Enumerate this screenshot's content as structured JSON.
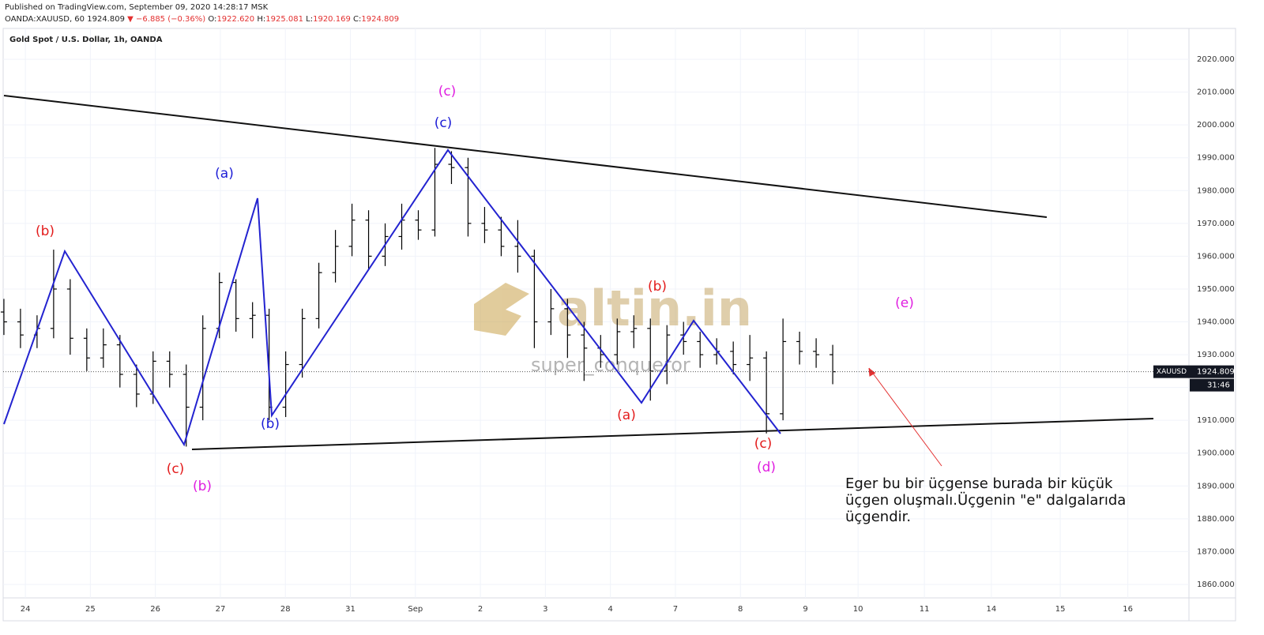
{
  "header": {
    "published": "Published on TradingView.com, September 09, 2020 14:28:17 MSK",
    "symbol": "OANDA:XAUUSD, 60",
    "price": "1924.809",
    "arrow": "▼",
    "change": "−6.885 (−0.36%)",
    "o_label": "O:",
    "o": "1922.620",
    "h_label": "H:",
    "h": "1925.081",
    "l_label": "L:",
    "l": "1920.169",
    "c_label": "C:",
    "c": "1924.809"
  },
  "chart_data": {
    "type": "ohlc",
    "title": "Gold Spot / U.S. Dollar, 1h, OANDA",
    "color": "#000000",
    "x": [
      -0.33,
      -0.075,
      0.18,
      0.435,
      0.69,
      0.945,
      1.2,
      1.455,
      1.71,
      1.965,
      2.22,
      2.475,
      2.73,
      2.985,
      3.24,
      3.495,
      3.75,
      4.005,
      4.26,
      4.515,
      4.77,
      5.025,
      5.28,
      5.535,
      5.79,
      6.045,
      6.3,
      6.555,
      6.81,
      7.065,
      7.32,
      7.575,
      7.83,
      8.085,
      8.34,
      8.595,
      8.85,
      9.105,
      9.36,
      9.615,
      9.87,
      10.125,
      10.38,
      10.635,
      10.89,
      11.145,
      11.4,
      11.655,
      11.91,
      12.165,
      12.42
    ],
    "open": [
      1943,
      1940,
      1936,
      1938,
      1950,
      1935,
      1929,
      1933,
      1924,
      1918,
      1928,
      1924,
      1914,
      1938,
      1952,
      1941,
      1942,
      1914,
      1927,
      1941,
      1955,
      1963,
      1971,
      1960,
      1966,
      1971,
      1968,
      1988,
      1987,
      1970,
      1968,
      1963,
      1960,
      1940,
      1944,
      1936,
      1932,
      1930,
      1937,
      1938,
      1925,
      1936,
      1934,
      1930,
      1931,
      1927,
      1929,
      1912,
      1934,
      1931,
      1930
    ],
    "high": [
      1947,
      1944,
      1942,
      1962,
      1953,
      1938,
      1938,
      1936,
      1927,
      1931,
      1931,
      1927,
      1942,
      1955,
      1953,
      1946,
      1944,
      1931,
      1944,
      1958,
      1968,
      1976,
      1974,
      1970,
      1976,
      1974,
      1993,
      1992,
      1990,
      1975,
      1972,
      1971,
      1962,
      1950,
      1947,
      1940,
      1936,
      1941,
      1942,
      1941,
      1939,
      1940,
      1937,
      1935,
      1934,
      1936,
      1931,
      1941,
      1937,
      1935,
      1933
    ],
    "low": [
      1936,
      1932,
      1932,
      1935,
      1930,
      1925,
      1926,
      1920,
      1914,
      1915,
      1920,
      1902,
      1910,
      1935,
      1937,
      1935,
      1910,
      1911,
      1923,
      1938,
      1952,
      1960,
      1956,
      1957,
      1962,
      1965,
      1966,
      1982,
      1966,
      1964,
      1960,
      1955,
      1932,
      1936,
      1929,
      1922,
      1926,
      1927,
      1932,
      1916,
      1921,
      1930,
      1926,
      1927,
      1924,
      1922,
      1906,
      1910,
      1927,
      1926,
      1921
    ],
    "close": [
      1940,
      1936,
      1938,
      1950,
      1935,
      1929,
      1933,
      1924,
      1918,
      1928,
      1924,
      1914,
      1938,
      1952,
      1941,
      1942,
      1914,
      1927,
      1941,
      1955,
      1963,
      1971,
      1960,
      1966,
      1971,
      1968,
      1988,
      1987,
      1970,
      1968,
      1963,
      1960,
      1940,
      1944,
      1936,
      1932,
      1930,
      1937,
      1938,
      1925,
      1936,
      1934,
      1930,
      1931,
      1927,
      1929,
      1912,
      1934,
      1931,
      1930,
      1924.809
    ],
    "xlim": [
      -0.39,
      17.9
    ],
    "xticks": [
      {
        "value": 0,
        "label": "24"
      },
      {
        "value": 1,
        "label": "25"
      },
      {
        "value": 2,
        "label": "26"
      },
      {
        "value": 3,
        "label": "27"
      },
      {
        "value": 4,
        "label": "28"
      },
      {
        "value": 5,
        "label": "31"
      },
      {
        "value": 6,
        "label": "Sep"
      },
      {
        "value": 7,
        "label": "2"
      },
      {
        "value": 8,
        "label": "3"
      },
      {
        "value": 9,
        "label": "4"
      },
      {
        "value": 10,
        "label": "7"
      },
      {
        "value": 11,
        "label": "8"
      },
      {
        "value": 12,
        "label": "9"
      },
      {
        "value": 12.81,
        "label": "10"
      },
      {
        "value": 13.83,
        "label": "11"
      },
      {
        "value": 14.86,
        "label": "14"
      },
      {
        "value": 15.92,
        "label": "15"
      },
      {
        "value": 16.96,
        "label": "16"
      }
    ],
    "ylim": [
      1855.9,
      2029.4
    ],
    "yticks": [
      {
        "value": 1860,
        "label": "1860.000"
      },
      {
        "value": 1870,
        "label": "1870.000"
      },
      {
        "value": 1880,
        "label": "1880.000"
      },
      {
        "value": 1890,
        "label": "1890.000"
      },
      {
        "value": 1900,
        "label": "1900.000"
      },
      {
        "value": 1910,
        "label": "1910.000"
      },
      {
        "value": 1920,
        "label": "1920.000"
      },
      {
        "value": 1930,
        "label": "1930.000"
      },
      {
        "value": 1940,
        "label": "1940.000"
      },
      {
        "value": 1950,
        "label": "1950.000"
      },
      {
        "value": 1960,
        "label": "1960.000"
      },
      {
        "value": 1970,
        "label": "1970.000"
      },
      {
        "value": 1980,
        "label": "1980.000"
      },
      {
        "value": 1990,
        "label": "1990.000"
      },
      {
        "value": 2000,
        "label": "2000.000"
      },
      {
        "value": 2010,
        "label": "2010.000"
      },
      {
        "value": 2020,
        "label": "2020.000"
      }
    ],
    "grid": true,
    "price_line": {
      "label": "XAUUSD",
      "value": 1924.809,
      "timer": "31:46"
    },
    "annotations": [
      {
        "text": "(b)",
        "color": "#e31c1c"
      },
      {
        "text": "(a)",
        "color": "#1c1cd6"
      },
      {
        "text": "(c)",
        "color": "#e01ee0"
      },
      {
        "text": "(c)",
        "color": "#1c1cd6"
      },
      {
        "text": "(b)",
        "color": "#e31c1c"
      },
      {
        "text": "(e)",
        "color": "#e01ee0"
      },
      {
        "text": "(c)",
        "color": "#e31c1c"
      },
      {
        "text": "(b)",
        "color": "#e01ee0"
      },
      {
        "text": "(b)",
        "color": "#1c1cd6"
      },
      {
        "text": "(a)",
        "color": "#e31c1c"
      },
      {
        "text": "(c)",
        "color": "#e31c1c"
      },
      {
        "text": "(d)",
        "color": "#e01ee0"
      }
    ],
    "watermark": {
      "brand": "altin.in",
      "author": "super_conqueror"
    },
    "note": [
      "Eger bu bir üçgense burada bir küçük",
      "üçgen oluşmalı.Üçgenin \"e\" dalgalarıda",
      "üçgendir."
    ]
  }
}
